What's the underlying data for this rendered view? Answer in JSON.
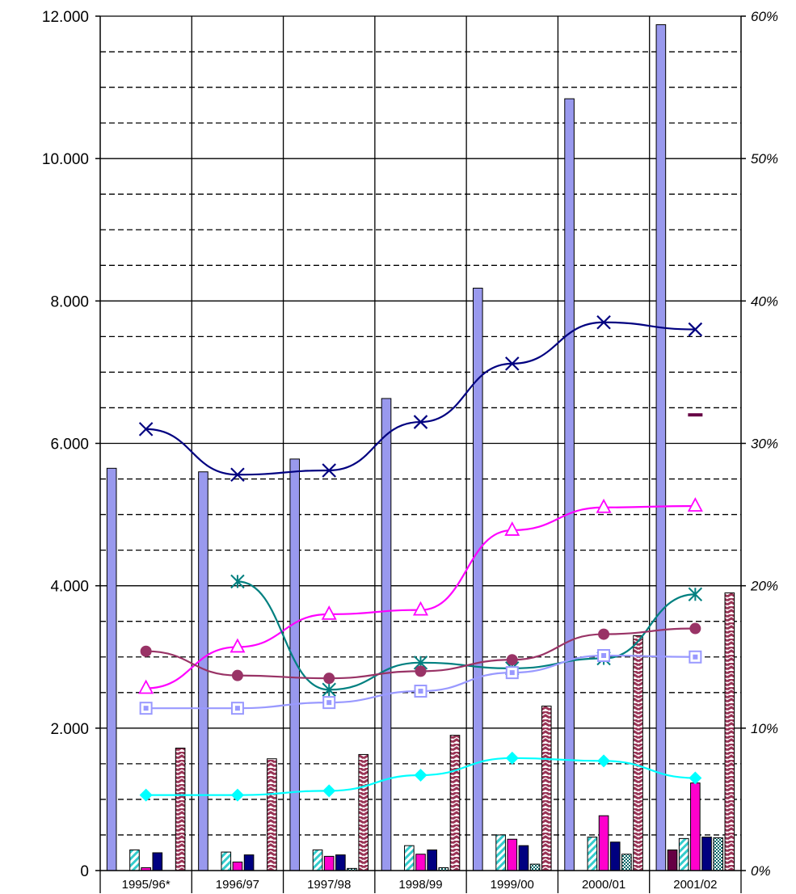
{
  "chart_data": {
    "type": "bar",
    "categories": [
      "1995/96*",
      "1996/97",
      "1997/98",
      "1998/99",
      "1999/00",
      "2000/01",
      "2001/02"
    ],
    "y_left": {
      "range": [
        0,
        12000
      ],
      "ticks": [
        0,
        2000,
        4000,
        6000,
        8000,
        10000,
        12000
      ],
      "tick_labels": [
        "0",
        "2.000",
        "4.000",
        "6.000",
        "8.000",
        "10.000",
        "12.000"
      ]
    },
    "y_right": {
      "range": [
        0,
        60
      ],
      "ticks": [
        0,
        10,
        20,
        30,
        40,
        50,
        60
      ],
      "tick_labels": [
        "0%",
        "10%",
        "20%",
        "30%",
        "40%",
        "50%",
        "60%"
      ]
    },
    "grid": {
      "major_solid": true,
      "minor_dashed_step": 500
    },
    "bar_series": [
      {
        "values": [
          5650,
          5600,
          5780,
          6630,
          8180,
          10840,
          11880
        ],
        "color": "#9999ee",
        "pattern": "solid"
      },
      {
        "values": [
          0,
          0,
          0,
          0,
          0,
          0,
          290
        ],
        "color": "#660044",
        "pattern": "solid"
      },
      {
        "values": [
          290,
          260,
          290,
          350,
          500,
          470,
          450
        ],
        "color": "#33cccc",
        "pattern": "diag"
      },
      {
        "values": [
          40,
          120,
          200,
          230,
          440,
          770,
          1230
        ],
        "color": "#ff00cc",
        "pattern": "solid"
      },
      {
        "values": [
          250,
          220,
          220,
          290,
          350,
          400,
          470
        ],
        "color": "#000080",
        "pattern": "solid"
      },
      {
        "values": [
          0,
          0,
          30,
          40,
          90,
          230,
          460
        ],
        "color": "#006666",
        "pattern": "dots"
      },
      {
        "values": [
          1720,
          1570,
          1630,
          1900,
          2310,
          3300,
          3900
        ],
        "color": "#993355",
        "pattern": "zigzag"
      }
    ],
    "line_series": [
      {
        "values": [
          31.0,
          27.8,
          28.1,
          31.5,
          35.6,
          38.5,
          38.0
        ],
        "color": "#000080",
        "marker": "x"
      },
      {
        "values": [
          null,
          null,
          null,
          null,
          null,
          null,
          32.0
        ],
        "color": "#660044",
        "marker": "dash"
      },
      {
        "values": [
          12.8,
          15.7,
          18.0,
          18.3,
          23.9,
          25.5,
          25.6
        ],
        "color": "#ff00ff",
        "marker": "triangle"
      },
      {
        "values": [
          null,
          20.3,
          12.7,
          14.6,
          14.2,
          14.9,
          19.4
        ],
        "color": "#008080",
        "marker": "asterisk"
      },
      {
        "values": [
          15.4,
          13.7,
          13.5,
          14.0,
          14.8,
          16.6,
          17.0
        ],
        "color": "#993366",
        "marker": "circle"
      },
      {
        "values": [
          11.4,
          11.4,
          11.8,
          12.6,
          13.9,
          15.1,
          15.0
        ],
        "color": "#9999ff",
        "marker": "square"
      },
      {
        "values": [
          5.3,
          5.3,
          5.6,
          6.7,
          7.9,
          7.7,
          6.5
        ],
        "color": "#00ffff",
        "marker": "diamond"
      }
    ]
  }
}
